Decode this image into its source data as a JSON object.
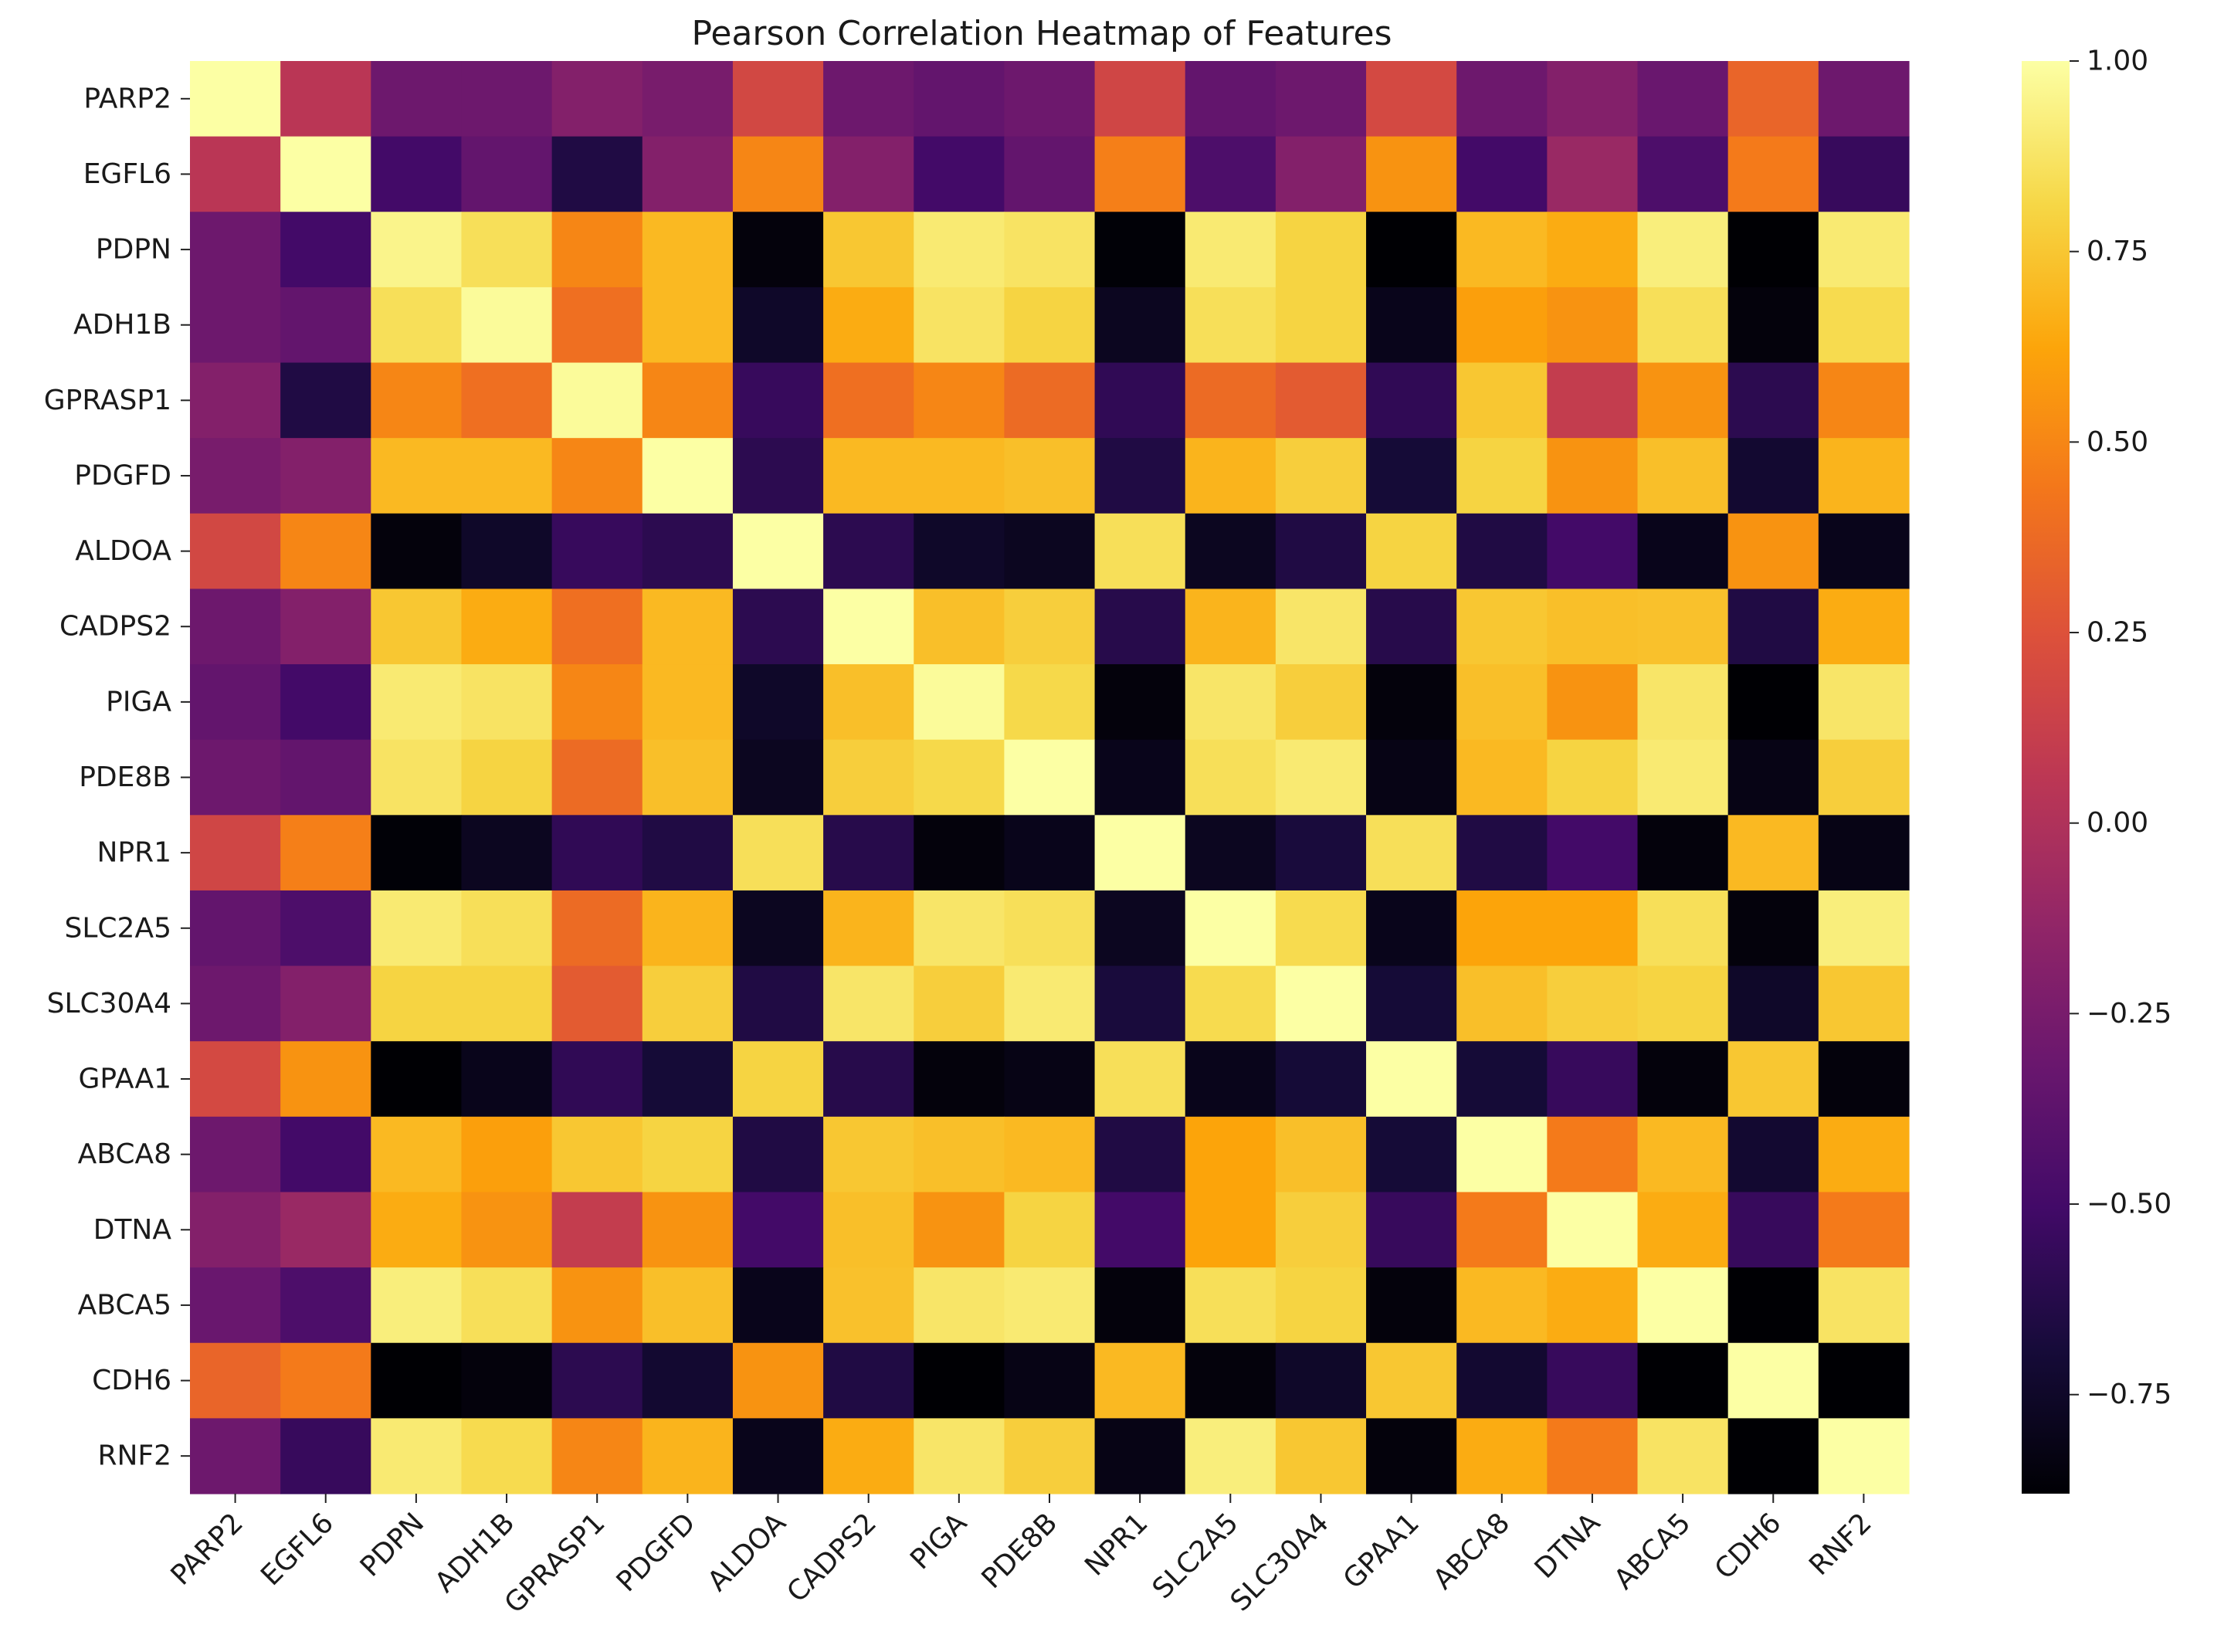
{
  "chart_data": {
    "type": "heatmap",
    "title": "Pearson Correlation Heatmap of Features",
    "xlabel": "",
    "ylabel": "",
    "colormap": "inferno",
    "color_range": [
      -0.88,
      1.0
    ],
    "colorbar_ticks": [
      1.0,
      0.75,
      0.5,
      0.25,
      0.0,
      -0.25,
      -0.5,
      -0.75
    ],
    "colorbar_tick_labels": [
      "1.00",
      "0.75",
      "0.50",
      "0.25",
      "0.00",
      "−0.25",
      "−0.50",
      "−0.75"
    ],
    "labels": [
      "PARP2",
      "EGFL6",
      "PDPN",
      "ADH1B",
      "GPRASP1",
      "PDGFD",
      "ALDOA",
      "CADPS2",
      "PIGA",
      "PDE8B",
      "NPR1",
      "SLC2A5",
      "SLC30A4",
      "GPAA1",
      "ABCA8",
      "DTNA",
      "ABCA5",
      "CDH6",
      "RNF2"
    ],
    "values": [
      [
        1.0,
        0.05,
        -0.3,
        -0.3,
        -0.2,
        -0.25,
        0.18,
        -0.3,
        -0.35,
        -0.3,
        0.17,
        -0.35,
        -0.3,
        0.19,
        -0.3,
        -0.2,
        -0.32,
        0.35,
        -0.3
      ],
      [
        0.05,
        1.0,
        -0.5,
        -0.35,
        -0.65,
        -0.2,
        0.5,
        -0.2,
        -0.5,
        -0.35,
        0.47,
        -0.45,
        -0.2,
        0.55,
        -0.5,
        -0.1,
        -0.45,
        0.45,
        -0.55
      ],
      [
        -0.3,
        -0.5,
        0.95,
        0.85,
        0.5,
        0.7,
        -0.85,
        0.75,
        0.9,
        0.87,
        -0.87,
        0.9,
        0.8,
        -0.88,
        0.7,
        0.65,
        0.92,
        -0.88,
        0.9
      ],
      [
        -0.3,
        -0.35,
        0.85,
        0.98,
        0.4,
        0.7,
        -0.75,
        0.65,
        0.87,
        0.8,
        -0.78,
        0.85,
        0.8,
        -0.8,
        0.6,
        0.55,
        0.85,
        -0.85,
        0.83
      ],
      [
        -0.2,
        -0.65,
        0.5,
        0.4,
        0.98,
        0.5,
        -0.55,
        0.4,
        0.5,
        0.38,
        -0.58,
        0.38,
        0.3,
        -0.58,
        0.75,
        0.1,
        0.55,
        -0.6,
        0.5
      ],
      [
        -0.25,
        -0.2,
        0.7,
        0.7,
        0.5,
        1.0,
        -0.6,
        0.7,
        0.7,
        0.72,
        -0.65,
        0.68,
        0.78,
        -0.7,
        0.8,
        0.55,
        0.72,
        -0.72,
        0.68
      ],
      [
        0.18,
        0.5,
        -0.85,
        -0.75,
        -0.55,
        -0.6,
        1.0,
        -0.6,
        -0.75,
        -0.78,
        0.85,
        -0.78,
        -0.65,
        0.8,
        -0.65,
        -0.5,
        -0.8,
        0.55,
        -0.8
      ],
      [
        -0.3,
        -0.2,
        0.75,
        0.65,
        0.4,
        0.7,
        -0.6,
        1.0,
        0.72,
        0.78,
        -0.62,
        0.68,
        0.88,
        -0.62,
        0.75,
        0.72,
        0.73,
        -0.65,
        0.65
      ],
      [
        -0.35,
        -0.5,
        0.9,
        0.87,
        0.5,
        0.7,
        -0.75,
        0.72,
        0.98,
        0.82,
        -0.85,
        0.88,
        0.78,
        -0.85,
        0.72,
        0.55,
        0.88,
        -0.88,
        0.88
      ],
      [
        -0.3,
        -0.35,
        0.87,
        0.8,
        0.38,
        0.72,
        -0.78,
        0.78,
        0.82,
        1.0,
        -0.8,
        0.85,
        0.9,
        -0.82,
        0.7,
        0.8,
        0.9,
        -0.82,
        0.78
      ],
      [
        0.17,
        0.47,
        -0.87,
        -0.78,
        -0.58,
        -0.65,
        0.85,
        -0.62,
        -0.85,
        -0.8,
        1.0,
        -0.78,
        -0.68,
        0.85,
        -0.65,
        -0.5,
        -0.85,
        0.7,
        -0.82
      ],
      [
        -0.35,
        -0.45,
        0.9,
        0.85,
        0.38,
        0.68,
        -0.78,
        0.68,
        0.88,
        0.85,
        -0.78,
        1.0,
        0.83,
        -0.8,
        0.62,
        0.62,
        0.85,
        -0.85,
        0.92
      ],
      [
        -0.3,
        -0.2,
        0.8,
        0.8,
        0.3,
        0.78,
        -0.65,
        0.88,
        0.78,
        0.9,
        -0.68,
        0.83,
        1.0,
        -0.7,
        0.72,
        0.78,
        0.8,
        -0.75,
        0.75
      ],
      [
        0.19,
        0.55,
        -0.88,
        -0.8,
        -0.58,
        -0.7,
        0.8,
        -0.62,
        -0.85,
        -0.82,
        0.85,
        -0.8,
        -0.7,
        1.0,
        -0.7,
        -0.55,
        -0.85,
        0.75,
        -0.85
      ],
      [
        -0.3,
        -0.5,
        0.7,
        0.6,
        0.75,
        0.8,
        -0.65,
        0.75,
        0.72,
        0.7,
        -0.65,
        0.62,
        0.72,
        -0.7,
        1.0,
        0.45,
        0.7,
        -0.72,
        0.65
      ],
      [
        -0.2,
        -0.1,
        0.65,
        0.55,
        0.1,
        0.55,
        -0.5,
        0.72,
        0.55,
        0.8,
        -0.5,
        0.62,
        0.78,
        -0.55,
        0.45,
        1.0,
        0.65,
        -0.55,
        0.45
      ],
      [
        -0.32,
        -0.45,
        0.92,
        0.85,
        0.55,
        0.72,
        -0.8,
        0.73,
        0.88,
        0.9,
        -0.85,
        0.85,
        0.8,
        -0.85,
        0.7,
        0.65,
        1.0,
        -0.88,
        0.87
      ],
      [
        0.35,
        0.45,
        -0.88,
        -0.85,
        -0.6,
        -0.72,
        0.55,
        -0.65,
        -0.88,
        -0.82,
        0.7,
        -0.85,
        -0.75,
        0.75,
        -0.72,
        -0.55,
        -0.88,
        1.0,
        -0.88
      ],
      [
        -0.3,
        -0.55,
        0.9,
        0.83,
        0.5,
        0.68,
        -0.8,
        0.65,
        0.88,
        0.78,
        -0.82,
        0.92,
        0.75,
        -0.85,
        0.65,
        0.45,
        0.87,
        -0.88,
        1.0
      ]
    ]
  }
}
